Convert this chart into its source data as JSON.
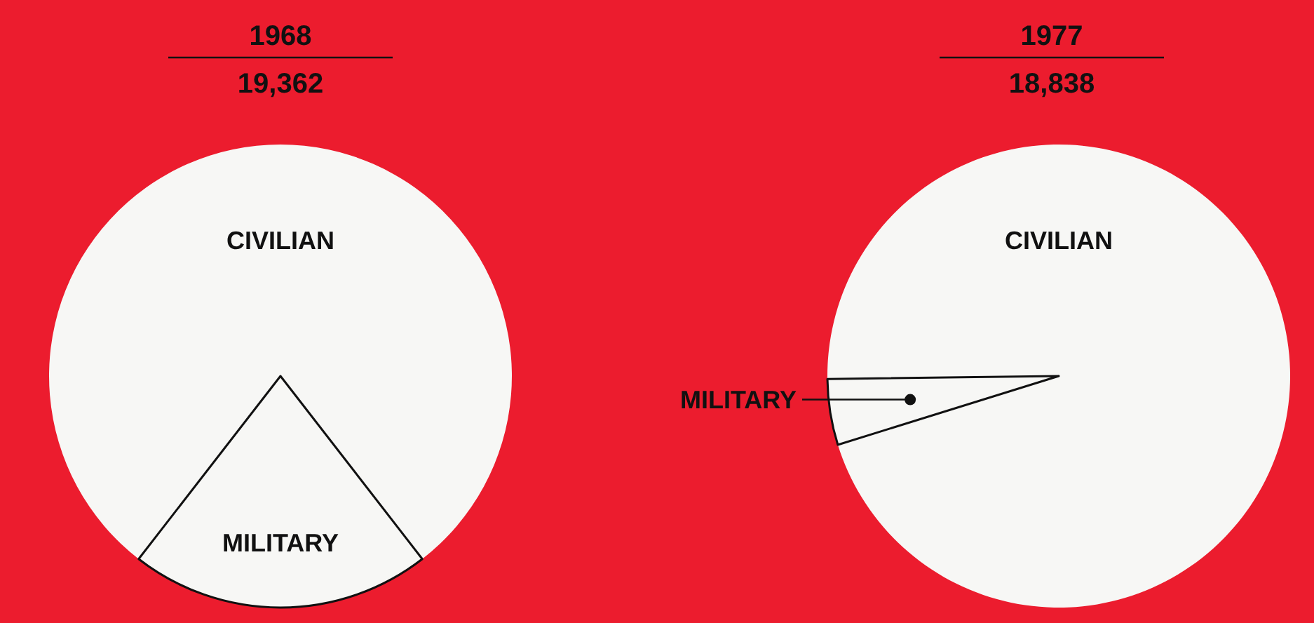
{
  "chart_data": [
    {
      "type": "pie",
      "title": "1968",
      "subtitle": "19,362",
      "categories": [
        "CIVILIAN",
        "MILITARY"
      ],
      "values": [
        79,
        21
      ],
      "colors": [
        "#f7f7f5",
        "#f7f7f5"
      ]
    },
    {
      "type": "pie",
      "title": "1977",
      "subtitle": "18,838",
      "categories": [
        "CIVILIAN",
        "MILITARY"
      ],
      "values": [
        95.4,
        4.6
      ],
      "colors": [
        "#f7f7f5",
        "#f7f7f5"
      ]
    }
  ]
}
